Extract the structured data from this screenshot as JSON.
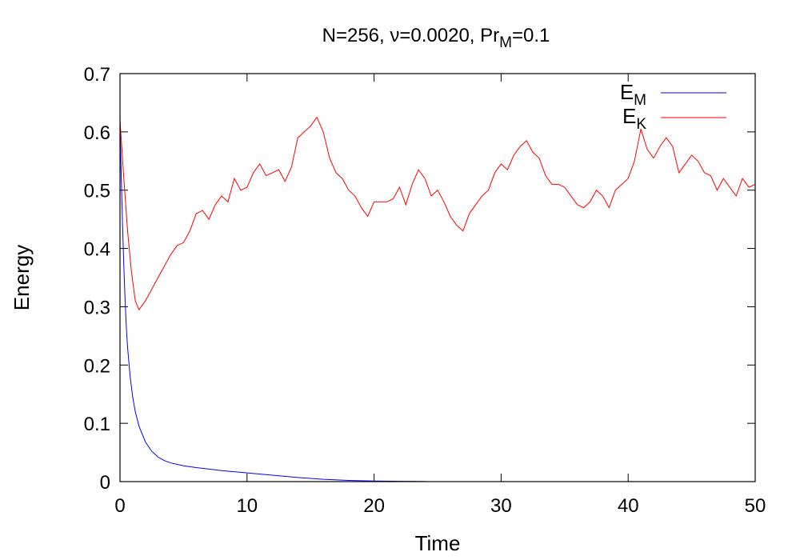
{
  "chart_data": {
    "type": "line",
    "title_main": "N=256, ν=0.0020, Pr",
    "title_sub": "M",
    "title_tail": "=0.1",
    "xlabel": "Time",
    "ylabel": "Energy",
    "xlim": [
      0,
      50
    ],
    "ylim": [
      0,
      0.7
    ],
    "x_ticks": [
      0,
      10,
      20,
      30,
      40,
      50
    ],
    "y_ticks": [
      0,
      0.1,
      0.2,
      0.3,
      0.4,
      0.5,
      0.6,
      0.7
    ],
    "x_tick_labels": [
      "0",
      "10",
      "20",
      "30",
      "40",
      "50"
    ],
    "y_tick_labels": [
      "0",
      "0.1",
      "0.2",
      "0.3",
      "0.4",
      "0.5",
      "0.6",
      "0.7"
    ],
    "grid": false,
    "legend_position": "top-right",
    "series": [
      {
        "name": "E",
        "name_sub": "M",
        "color": "#0000ff",
        "points": [
          [
            0,
            0.62
          ],
          [
            0.1,
            0.52
          ],
          [
            0.2,
            0.44
          ],
          [
            0.3,
            0.37
          ],
          [
            0.4,
            0.31
          ],
          [
            0.5,
            0.265
          ],
          [
            0.6,
            0.23
          ],
          [
            0.8,
            0.18
          ],
          [
            1.0,
            0.145
          ],
          [
            1.2,
            0.12
          ],
          [
            1.5,
            0.095
          ],
          [
            2.0,
            0.068
          ],
          [
            2.5,
            0.052
          ],
          [
            3.0,
            0.042
          ],
          [
            3.5,
            0.036
          ],
          [
            4.0,
            0.032
          ],
          [
            5.0,
            0.027
          ],
          [
            6.0,
            0.024
          ],
          [
            8.0,
            0.019
          ],
          [
            10.0,
            0.015
          ],
          [
            12.0,
            0.011
          ],
          [
            14.0,
            0.007
          ],
          [
            16.0,
            0.004
          ],
          [
            18.0,
            0.002
          ],
          [
            20.0,
            0.001
          ],
          [
            22.0,
            0.0005
          ],
          [
            24.0,
            0.0002
          ]
        ]
      },
      {
        "name": "E",
        "name_sub": "K",
        "color": "#ff0000",
        "points": [
          [
            0,
            0.62
          ],
          [
            0.3,
            0.52
          ],
          [
            0.6,
            0.43
          ],
          [
            0.9,
            0.36
          ],
          [
            1.2,
            0.31
          ],
          [
            1.5,
            0.295
          ],
          [
            2.0,
            0.31
          ],
          [
            2.5,
            0.33
          ],
          [
            3.0,
            0.35
          ],
          [
            3.5,
            0.37
          ],
          [
            4.0,
            0.39
          ],
          [
            4.5,
            0.405
          ],
          [
            5.0,
            0.41
          ],
          [
            5.5,
            0.43
          ],
          [
            6.0,
            0.46
          ],
          [
            6.5,
            0.465
          ],
          [
            7.0,
            0.45
          ],
          [
            7.5,
            0.475
          ],
          [
            8.0,
            0.49
          ],
          [
            8.5,
            0.48
          ],
          [
            9.0,
            0.52
          ],
          [
            9.5,
            0.5
          ],
          [
            10.0,
            0.505
          ],
          [
            10.5,
            0.53
          ],
          [
            11.0,
            0.545
          ],
          [
            11.5,
            0.525
          ],
          [
            12.0,
            0.53
          ],
          [
            12.5,
            0.535
          ],
          [
            13.0,
            0.515
          ],
          [
            13.5,
            0.54
          ],
          [
            14.0,
            0.59
          ],
          [
            14.5,
            0.6
          ],
          [
            15.0,
            0.61
          ],
          [
            15.5,
            0.625
          ],
          [
            16.0,
            0.6
          ],
          [
            16.5,
            0.555
          ],
          [
            17.0,
            0.53
          ],
          [
            17.5,
            0.52
          ],
          [
            18.0,
            0.5
          ],
          [
            18.5,
            0.49
          ],
          [
            19.0,
            0.47
          ],
          [
            19.5,
            0.455
          ],
          [
            20.0,
            0.48
          ],
          [
            20.5,
            0.48
          ],
          [
            21.0,
            0.48
          ],
          [
            21.5,
            0.485
          ],
          [
            22.0,
            0.505
          ],
          [
            22.5,
            0.475
          ],
          [
            23.0,
            0.51
          ],
          [
            23.5,
            0.535
          ],
          [
            24.0,
            0.52
          ],
          [
            24.5,
            0.49
          ],
          [
            25.0,
            0.5
          ],
          [
            25.5,
            0.48
          ],
          [
            26.0,
            0.455
          ],
          [
            26.5,
            0.44
          ],
          [
            27.0,
            0.43
          ],
          [
            27.5,
            0.46
          ],
          [
            28.0,
            0.475
          ],
          [
            28.5,
            0.49
          ],
          [
            29.0,
            0.5
          ],
          [
            29.5,
            0.53
          ],
          [
            30.0,
            0.545
          ],
          [
            30.5,
            0.535
          ],
          [
            31.0,
            0.56
          ],
          [
            31.5,
            0.575
          ],
          [
            32.0,
            0.585
          ],
          [
            32.5,
            0.565
          ],
          [
            33.0,
            0.555
          ],
          [
            33.5,
            0.525
          ],
          [
            34.0,
            0.51
          ],
          [
            34.5,
            0.51
          ],
          [
            35.0,
            0.505
          ],
          [
            35.5,
            0.49
          ],
          [
            36.0,
            0.475
          ],
          [
            36.5,
            0.47
          ],
          [
            37.0,
            0.48
          ],
          [
            37.5,
            0.5
          ],
          [
            38.0,
            0.49
          ],
          [
            38.5,
            0.47
          ],
          [
            39.0,
            0.5
          ],
          [
            39.5,
            0.51
          ],
          [
            40.0,
            0.52
          ],
          [
            40.5,
            0.55
          ],
          [
            41.0,
            0.605
          ],
          [
            41.5,
            0.57
          ],
          [
            42.0,
            0.555
          ],
          [
            42.5,
            0.575
          ],
          [
            43.0,
            0.59
          ],
          [
            43.5,
            0.575
          ],
          [
            44.0,
            0.53
          ],
          [
            44.5,
            0.545
          ],
          [
            45.0,
            0.56
          ],
          [
            45.5,
            0.55
          ],
          [
            46.0,
            0.53
          ],
          [
            46.5,
            0.525
          ],
          [
            47.0,
            0.5
          ],
          [
            47.5,
            0.52
          ],
          [
            48.0,
            0.505
          ],
          [
            48.5,
            0.49
          ],
          [
            49.0,
            0.52
          ],
          [
            49.5,
            0.505
          ],
          [
            50.0,
            0.51
          ]
        ]
      }
    ]
  }
}
